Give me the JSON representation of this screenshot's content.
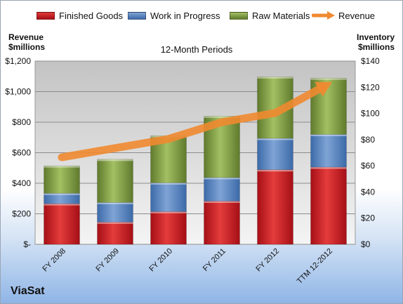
{
  "legend": {
    "finished_goods": "Finished Goods",
    "work_in_progress": "Work in Progress",
    "raw_materials": "Raw Materials",
    "revenue": "Revenue"
  },
  "axis_titles": {
    "left_line1": "Revenue",
    "left_line2": "$millions",
    "right_line1": "Inventory",
    "right_line2": "$millions"
  },
  "company": "ViaSat",
  "colors": {
    "finished_goods": "#c0141c",
    "work_in_progress": "#4f81bd",
    "raw_materials": "#77933c",
    "revenue": "#f08a30"
  },
  "chart_data": {
    "type": "bar",
    "title": "12-Month Periods",
    "categories": [
      "FY 2008",
      "FY 2009",
      "FY 2010",
      "FY 2011",
      "FY 2012",
      "TTM 12-2012"
    ],
    "stacked": true,
    "series": [
      {
        "name": "Finished Goods",
        "axis": "right",
        "values": [
          31,
          17,
          25,
          33,
          57,
          59
        ]
      },
      {
        "name": "Work in Progress",
        "axis": "right",
        "values": [
          8,
          15,
          22,
          18,
          24,
          25
        ]
      },
      {
        "name": "Raw Materials",
        "axis": "right",
        "values": [
          21,
          33,
          36,
          47,
          47,
          43
        ]
      },
      {
        "name": "Revenue",
        "type": "line",
        "axis": "left",
        "values": [
          570,
          630,
          690,
          800,
          860,
          1050
        ]
      }
    ],
    "left_axis": {
      "ylim": [
        0,
        1200
      ],
      "ticks": [
        "$-",
        "$200",
        "$400",
        "$600",
        "$800",
        "$1,000",
        "$1,200"
      ],
      "tick_values": [
        0,
        200,
        400,
        600,
        800,
        1000,
        1200
      ]
    },
    "right_axis": {
      "ylim": [
        0,
        140
      ],
      "ticks": [
        "$0",
        "$20",
        "$40",
        "$60",
        "$80",
        "$100",
        "$120",
        "$140"
      ],
      "tick_values": [
        0,
        20,
        40,
        60,
        80,
        100,
        120,
        140
      ]
    },
    "grid": true,
    "legend_position": "top"
  }
}
